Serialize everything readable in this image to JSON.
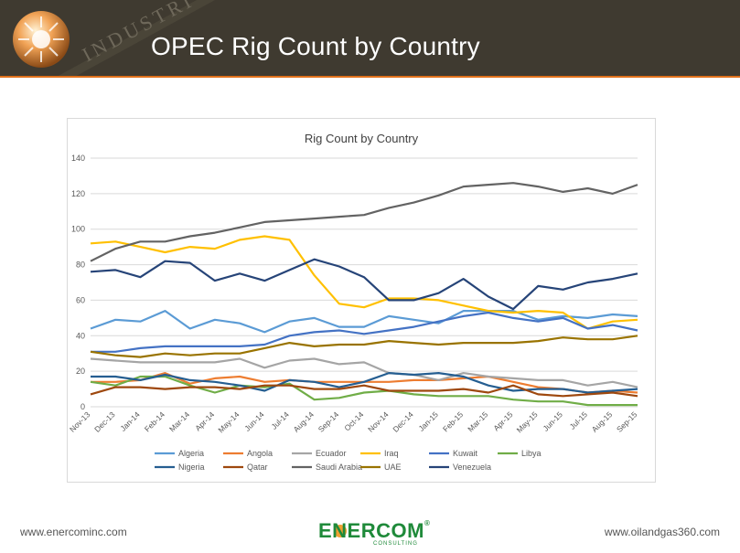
{
  "slide": {
    "title": "OPEC Rig Count by Country",
    "header_watermark": "INDUSTRI",
    "footer_left": "www.enercominc.com",
    "footer_right": "www.oilandgas360.com",
    "brand_name": "ENERCOM",
    "brand_mark": "®",
    "brand_sub": "CONSULTING",
    "colors": {
      "header_bg": "#3f3a30",
      "accent": "#e0701a",
      "brand_green": "#1f8a3a"
    }
  },
  "chart_data": {
    "type": "line",
    "title": "Rig Count by Country",
    "xlabel": "",
    "ylabel": "",
    "ylim": [
      0,
      140
    ],
    "yticks": [
      0,
      20,
      40,
      60,
      80,
      100,
      120,
      140
    ],
    "grid": true,
    "legend_position": "bottom",
    "categories": [
      "Nov-13",
      "Dec-13",
      "Jan-14",
      "Feb-14",
      "Mar-14",
      "Apr-14",
      "May-14",
      "Jun-14",
      "Jul-14",
      "Aug-14",
      "Sep-14",
      "Oct-14",
      "Nov-14",
      "Dec-14",
      "Jan-15",
      "Feb-15",
      "Mar-15",
      "Apr-15",
      "May-15",
      "Jun-15",
      "Jul-15",
      "Aug-15",
      "Sep-15"
    ],
    "series": [
      {
        "name": "Algeria",
        "color": "#5b9bd5",
        "values": [
          44,
          49,
          48,
          54,
          44,
          49,
          47,
          42,
          48,
          50,
          45,
          45,
          51,
          49,
          47,
          54,
          54,
          54,
          49,
          51,
          50,
          52,
          51
        ]
      },
      {
        "name": "Angola",
        "color": "#ed7d31",
        "values": [
          14,
          14,
          15,
          19,
          13,
          16,
          17,
          14,
          15,
          14,
          14,
          14,
          14,
          15,
          15,
          16,
          17,
          14,
          11,
          10,
          8,
          9,
          8
        ]
      },
      {
        "name": "Ecuador",
        "color": "#a5a5a5",
        "values": [
          27,
          26,
          25,
          25,
          25,
          25,
          27,
          22,
          26,
          27,
          24,
          25,
          19,
          18,
          15,
          19,
          17,
          16,
          15,
          15,
          12,
          14,
          11
        ]
      },
      {
        "name": "Iraq",
        "color": "#ffc000",
        "values": [
          92,
          93,
          90,
          87,
          90,
          89,
          94,
          96,
          94,
          74,
          58,
          56,
          61,
          61,
          60,
          57,
          54,
          53,
          54,
          53,
          44,
          48,
          49
        ]
      },
      {
        "name": "Kuwait",
        "color": "#4472c4",
        "values": [
          31,
          31,
          33,
          34,
          34,
          34,
          34,
          35,
          40,
          42,
          43,
          41,
          43,
          45,
          48,
          51,
          53,
          50,
          48,
          50,
          44,
          46,
          43
        ]
      },
      {
        "name": "Libya",
        "color": "#70ad47",
        "values": [
          14,
          12,
          17,
          17,
          12,
          8,
          12,
          11,
          13,
          4,
          5,
          8,
          9,
          7,
          6,
          6,
          6,
          4,
          3,
          3,
          1,
          1,
          1
        ]
      },
      {
        "name": "Nigeria",
        "color": "#255e91",
        "values": [
          17,
          17,
          15,
          18,
          15,
          14,
          12,
          9,
          15,
          14,
          11,
          14,
          19,
          18,
          19,
          17,
          12,
          9,
          10,
          10,
          8,
          9,
          10
        ]
      },
      {
        "name": "Qatar",
        "color": "#9e480e",
        "values": [
          7,
          11,
          11,
          10,
          11,
          11,
          10,
          12,
          12,
          10,
          10,
          12,
          9,
          9,
          9,
          10,
          8,
          12,
          7,
          6,
          7,
          8,
          6
        ]
      },
      {
        "name": "Saudi Arabia",
        "color": "#636363",
        "values": [
          82,
          89,
          93,
          93,
          96,
          98,
          101,
          104,
          105,
          106,
          107,
          108,
          112,
          115,
          119,
          124,
          125,
          126,
          124,
          121,
          123,
          120,
          125
        ]
      },
      {
        "name": "UAE",
        "color": "#997300",
        "values": [
          31,
          29,
          28,
          30,
          29,
          30,
          30,
          33,
          36,
          34,
          35,
          35,
          37,
          36,
          35,
          36,
          36,
          36,
          37,
          39,
          38,
          38,
          40
        ]
      },
      {
        "name": "Venezuela",
        "color": "#264478",
        "values": [
          76,
          77,
          73,
          82,
          81,
          71,
          75,
          71,
          77,
          83,
          79,
          73,
          60,
          60,
          64,
          72,
          62,
          55,
          68,
          66,
          70,
          72,
          75
        ]
      }
    ]
  }
}
